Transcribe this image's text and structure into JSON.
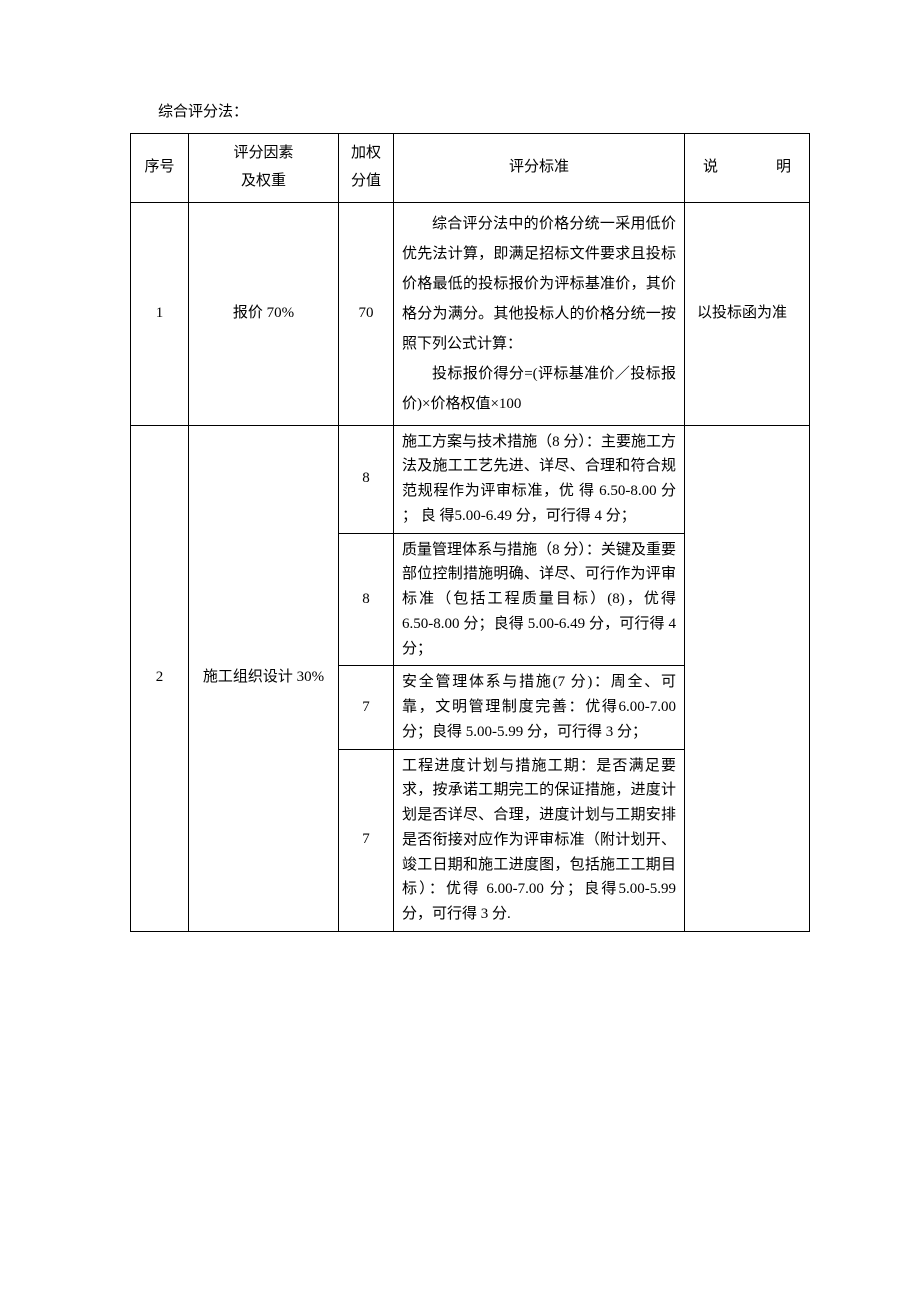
{
  "title": "综合评分法：",
  "header": {
    "seq": "序号",
    "factor_line1": "评分因素",
    "factor_line2": "及权重",
    "weight_line1": "加权",
    "weight_line2": "分值",
    "criteria": "评分标准",
    "note_char1": "说",
    "note_char2": "明"
  },
  "row1": {
    "seq": "1",
    "factor": "报价 70%",
    "weight": "70",
    "criteria_p1": "综合评分法中的价格分统一采用低价优先法计算，即满足招标文件要求且投标价格最低的投标报价为评标基准价，其价格分为满分。其他投标人的价格分统一按照下列公式计算：",
    "criteria_p2": "投标报价得分=(评标基准价／投标报价)×价格权值×100",
    "note": "以投标函为准"
  },
  "row2": {
    "seq": "2",
    "factor": "施工组织设计 30%",
    "sub1": {
      "weight": "8",
      "criteria": "施工方案与技术措施（8 分）：主要施工方法及施工工艺先进、详尽、合理和符合规范规程作为评审标准，优 得 6.50-8.00 分 ； 良 得5.00-6.49 分，可行得 4 分；"
    },
    "sub2": {
      "weight": "8",
      "criteria": "质量管理体系与措施（8 分）：关键及重要部位控制措施明确、详尽、可行作为评审标准（包括工程质量目标）(8)，优得 6.50-8.00 分；良得 5.00-6.49 分，可行得 4 分；"
    },
    "sub3": {
      "weight": "7",
      "criteria": "安全管理体系与措施(7 分)：周全、可靠，文明管理制度完善：优得6.00-7.00 分；良得 5.00-5.99 分，可行得 3 分；"
    },
    "sub4": {
      "weight": "7",
      "criteria": "工程进度计划与措施工期：是否满足要求，按承诺工期完工的保证措施，进度计划是否详尽、合理，进度计划与工期安排是否衔接对应作为评审标准（附计划开、竣工日期和施工进度图，包括施工工期目标）：优得 6.00-7.00 分；良得5.00-5.99 分，可行得 3 分."
    },
    "note": ""
  },
  "style": {
    "border_color": "#000000",
    "background_color": "#ffffff",
    "text_color": "#000000",
    "font_family": "SimSun",
    "base_fontsize": 15
  }
}
